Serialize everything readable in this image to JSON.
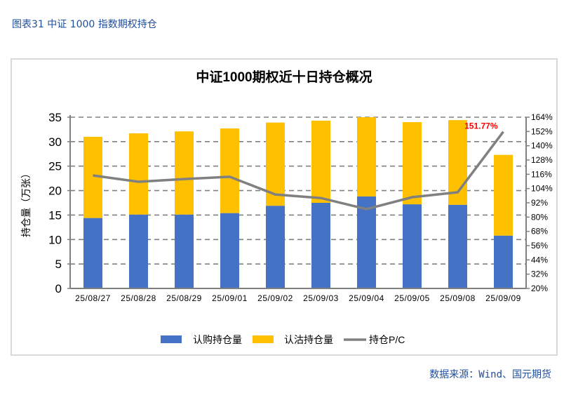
{
  "figure_title": "图表31  中证 1000 指数期权持仓",
  "source": "数据来源：Wind、国元期货",
  "colors": {
    "call": "#4472C4",
    "put": "#FFC000",
    "pc": "#808080",
    "label": "#FF0000",
    "caption": "#1f4e9c"
  },
  "chart_data": {
    "type": "bar",
    "stacked": true,
    "title": "中证1000期权近十日持仓概况",
    "ylabel": "持仓量（万张）",
    "ylim": [
      0,
      35
    ],
    "yticks": [
      0,
      5,
      10,
      15,
      20,
      25,
      30,
      35
    ],
    "y2lim": [
      20,
      164
    ],
    "y2ticks": [
      "20%",
      "32%",
      "44%",
      "56%",
      "68%",
      "80%",
      "92%",
      "104%",
      "116%",
      "128%",
      "140%",
      "152%",
      "164%"
    ],
    "grid": true,
    "legend_position": "bottom",
    "categories": [
      "25/08/27",
      "25/08/28",
      "25/08/29",
      "25/09/01",
      "25/09/02",
      "25/09/03",
      "25/09/04",
      "25/09/05",
      "25/09/08",
      "25/09/09"
    ],
    "series": [
      {
        "name": "认购持仓量",
        "type": "bar",
        "axis": "left",
        "values": [
          14.4,
          15.1,
          15.1,
          15.4,
          16.9,
          17.5,
          18.8,
          17.2,
          17.1,
          10.8
        ]
      },
      {
        "name": "认沽持仓量",
        "type": "bar",
        "axis": "left",
        "values": [
          16.6,
          16.6,
          17.0,
          17.3,
          17.0,
          16.8,
          16.2,
          16.8,
          17.3,
          16.5
        ]
      },
      {
        "name": "持仓P/C",
        "type": "line",
        "axis": "right",
        "unit": "%",
        "values": [
          115.0,
          109.7,
          112.0,
          113.9,
          99.0,
          96.0,
          86.7,
          96.7,
          100.9,
          151.77
        ]
      }
    ],
    "annotations": [
      {
        "category": "25/09/09",
        "series": "持仓P/C",
        "text": "151.77%"
      }
    ]
  }
}
